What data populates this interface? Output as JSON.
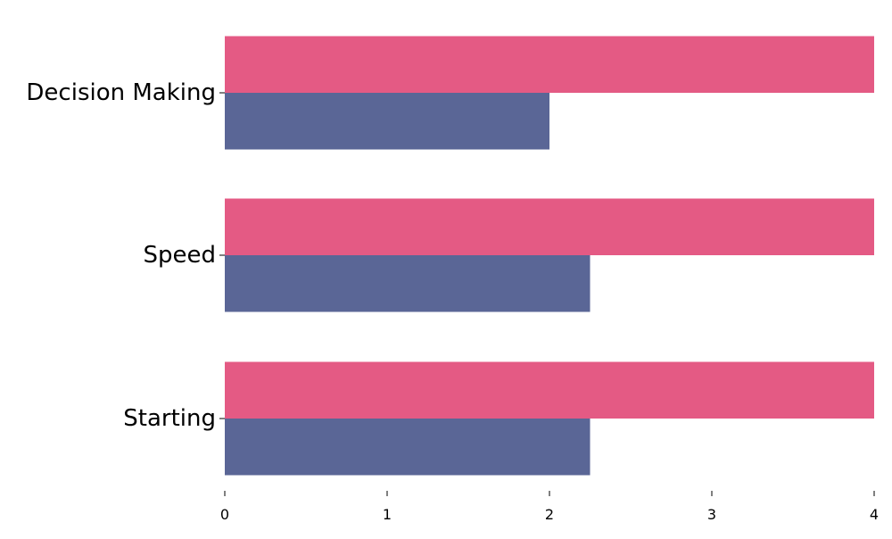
{
  "chart_data": {
    "type": "bar",
    "orientation": "horizontal",
    "categories": [
      "Decision Making",
      "Speed",
      "Starting"
    ],
    "series": [
      {
        "values": [
          4,
          4,
          4
        ],
        "color": "#E45A84"
      },
      {
        "values": [
          2,
          2.25,
          2.25
        ],
        "color": "#5A6696"
      }
    ],
    "xlim": [
      0,
      4
    ],
    "x_ticks": [
      "0",
      "1",
      "2",
      "3",
      "4"
    ],
    "title": "",
    "xlabel": "",
    "ylabel": "",
    "grid": false,
    "legend": false
  }
}
